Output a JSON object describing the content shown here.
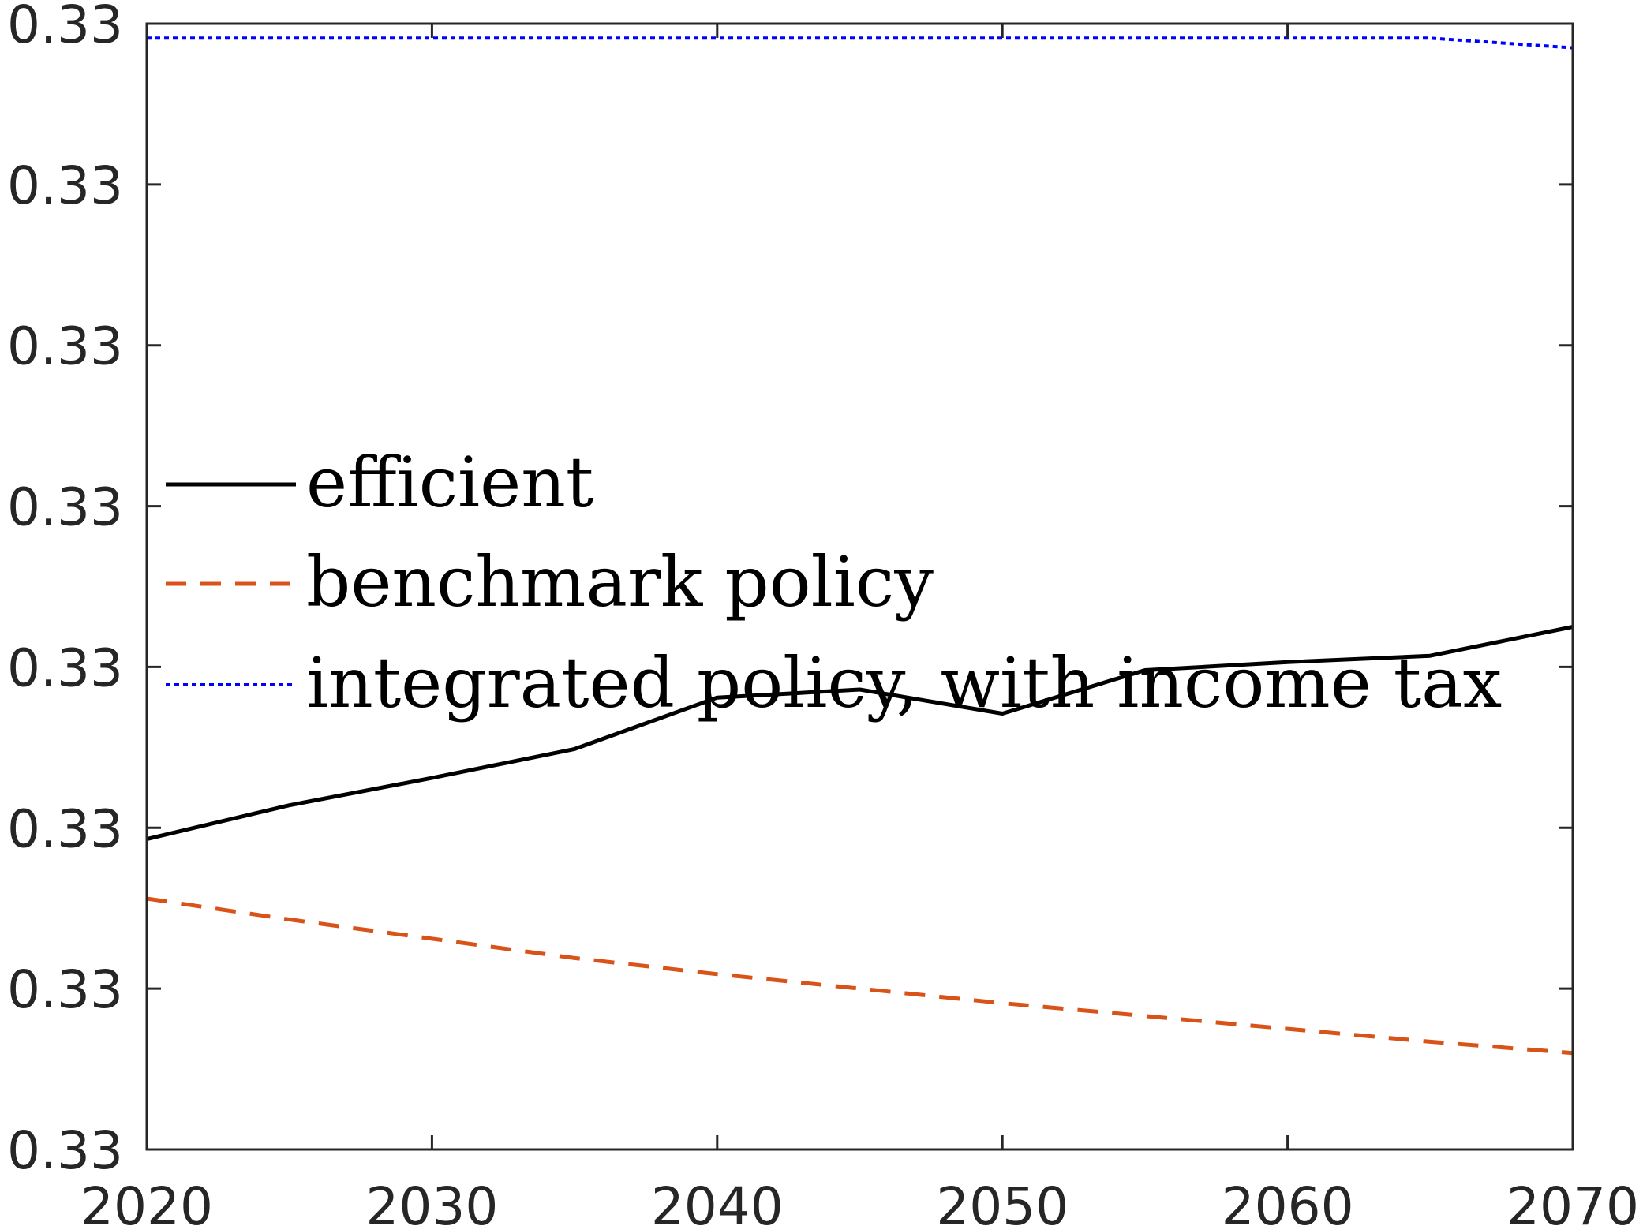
{
  "chart_data": {
    "type": "line",
    "title": "",
    "xlabel": "",
    "ylabel": "",
    "xlim": [
      2020,
      2070
    ],
    "ylim": [
      0.0,
      7.0
    ],
    "x_ticks": [
      "2020",
      "2030",
      "2040",
      "2050",
      "2060",
      "2070"
    ],
    "y_ticks": [
      "0.33",
      "0.33",
      "0.33",
      "0.33",
      "0.33",
      "0.33",
      "0.33",
      "0.33"
    ],
    "grid": false,
    "legend_position": "center-left",
    "series": [
      {
        "name": "efficient",
        "color": "#000000",
        "style": "solid",
        "x": [
          2020,
          2025,
          2030,
          2035,
          2040,
          2045,
          2050,
          2055,
          2060,
          2065,
          2070
        ],
        "y": [
          1.93,
          2.14,
          2.31,
          2.49,
          2.81,
          2.86,
          2.71,
          2.98,
          3.03,
          3.07,
          3.25
        ]
      },
      {
        "name": "benchmark policy",
        "color": "#D95319",
        "style": "dashed",
        "x": [
          2020,
          2025,
          2030,
          2035,
          2040,
          2045,
          2050,
          2055,
          2060,
          2065,
          2070
        ],
        "y": [
          1.56,
          1.43,
          1.31,
          1.19,
          1.09,
          1.0,
          0.91,
          0.83,
          0.75,
          0.67,
          0.6
        ]
      },
      {
        "name": "integrated policy, with income tax",
        "color": "#0000FF",
        "style": "dotted",
        "x": [
          2020,
          2025,
          2030,
          2035,
          2040,
          2045,
          2050,
          2055,
          2060,
          2065,
          2070
        ],
        "y": [
          6.91,
          6.91,
          6.91,
          6.91,
          6.91,
          6.91,
          6.91,
          6.91,
          6.91,
          6.91,
          6.85
        ]
      }
    ]
  }
}
